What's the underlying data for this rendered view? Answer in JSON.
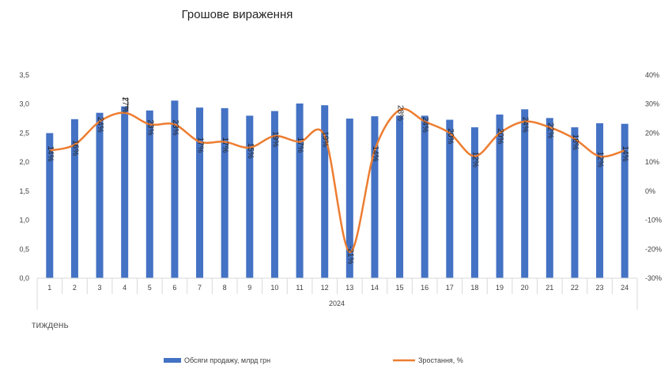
{
  "chart_data": {
    "type": "bar",
    "title": "Грошове вираження",
    "xlabel": "тиждень",
    "x_group_label": "2024",
    "categories": [
      "1",
      "2",
      "3",
      "4",
      "5",
      "6",
      "7",
      "8",
      "9",
      "10",
      "11",
      "12",
      "13",
      "14",
      "15",
      "16",
      "17",
      "18",
      "19",
      "20",
      "21",
      "22",
      "23",
      "24"
    ],
    "y_ticks": [
      "0,0",
      "0,5",
      "1,0",
      "1,5",
      "2,0",
      "2,5",
      "3,0",
      "3,5"
    ],
    "y2_ticks": [
      "-30%",
      "-20%",
      "-10%",
      "0%",
      "10%",
      "20%",
      "30%",
      "40%"
    ],
    "ylim": [
      0,
      3.5
    ],
    "y2lim": [
      -30,
      40
    ],
    "series": [
      {
        "name": "Обсяги продажу, млрд грн",
        "type": "bar",
        "axis": "left",
        "color": "#4472C4",
        "values": [
          2.5,
          2.74,
          2.85,
          2.96,
          2.89,
          3.06,
          2.94,
          2.93,
          2.8,
          2.88,
          3.01,
          2.98,
          2.75,
          2.79,
          2.8,
          2.8,
          2.73,
          2.6,
          2.82,
          2.91,
          2.76,
          2.6,
          2.67,
          2.66
        ]
      },
      {
        "name": "Зростання, %",
        "type": "line",
        "axis": "right",
        "color": "#ED7D31",
        "values": [
          14,
          16,
          24,
          27,
          23,
          23,
          17,
          17,
          15,
          19,
          17,
          19,
          -21,
          14,
          28,
          24,
          20,
          12,
          20,
          24,
          22,
          18,
          12,
          14
        ],
        "labels": [
          "14%",
          "16%",
          "24%",
          "27%",
          "23%",
          "23%",
          "17%",
          "17%",
          "15%",
          "19%",
          "17%",
          "19%",
          "-21%",
          "14%",
          "28%",
          "24%",
          "20%",
          "12%",
          "20%",
          "24%",
          "22%",
          "18%",
          "12%",
          "14%"
        ]
      }
    ],
    "grid": false,
    "legend_position": "bottom"
  }
}
